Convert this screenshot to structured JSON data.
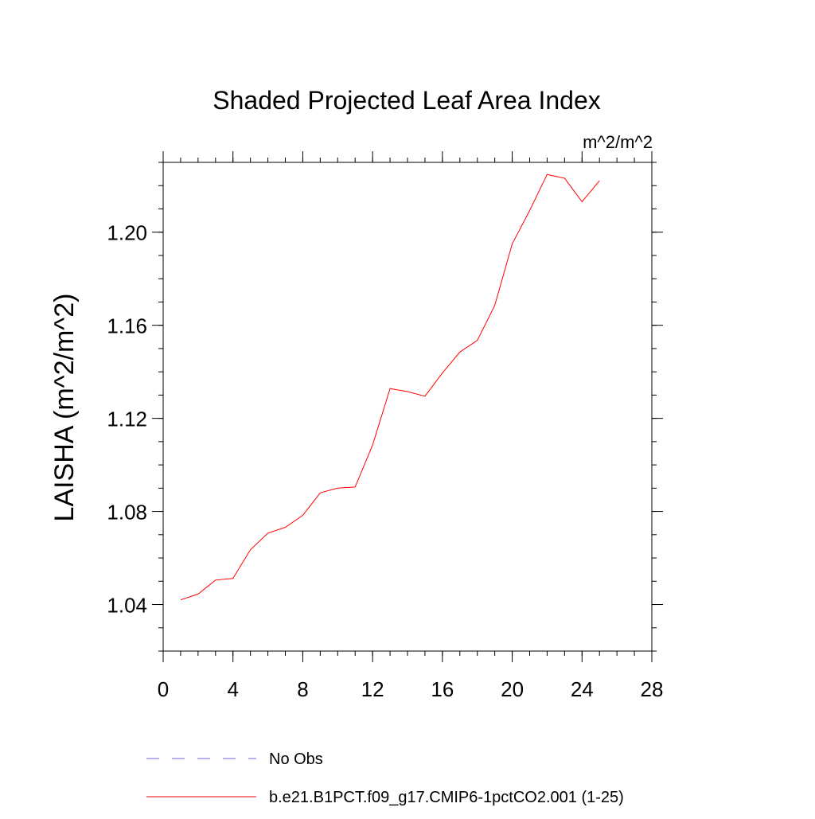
{
  "chart_data": {
    "type": "line",
    "title": "Shaded Projected Leaf Area Index",
    "units_label": "m^2/m^2",
    "ylabel": "LAISHA  (m^2/m^2)",
    "xlabel": "",
    "xlim": [
      0,
      28
    ],
    "ylim": [
      1.02,
      1.23
    ],
    "xticks": [
      "0",
      "4",
      "8",
      "12",
      "16",
      "20",
      "24",
      "28"
    ],
    "yticks": [
      "1.04",
      "1.08",
      "1.12",
      "1.16",
      "1.20"
    ],
    "xminor_step": 1,
    "yminor_step": 0.01,
    "grid": false,
    "legend_position": "bottom",
    "series": [
      {
        "name": "b.e21.B1PCT.f09_g17.CMIP6-1pctCO2.001 (1-25)",
        "color": "#ff0000",
        "style": "solid",
        "x": [
          1,
          2,
          3,
          4,
          5,
          6,
          7,
          8,
          9,
          10,
          11,
          12,
          13,
          14,
          15,
          16,
          17,
          18,
          19,
          20,
          21,
          22,
          23,
          24,
          25
        ],
        "y": [
          1.042,
          1.0445,
          1.0505,
          1.0512,
          1.0635,
          1.0707,
          1.0732,
          1.0783,
          1.088,
          1.09,
          1.0905,
          1.1085,
          1.1328,
          1.1315,
          1.1295,
          1.1395,
          1.1485,
          1.1535,
          1.1685,
          1.195,
          1.2093,
          1.2248,
          1.2232,
          1.2131,
          1.2221
        ]
      }
    ],
    "legend": [
      {
        "label": "No Obs",
        "color": "#6a6ad8",
        "style": "dashed"
      },
      {
        "label": "b.e21.B1PCT.f09_g17.CMIP6-1pctCO2.001 (1-25)",
        "color": "#ff0000",
        "style": "solid"
      }
    ]
  }
}
